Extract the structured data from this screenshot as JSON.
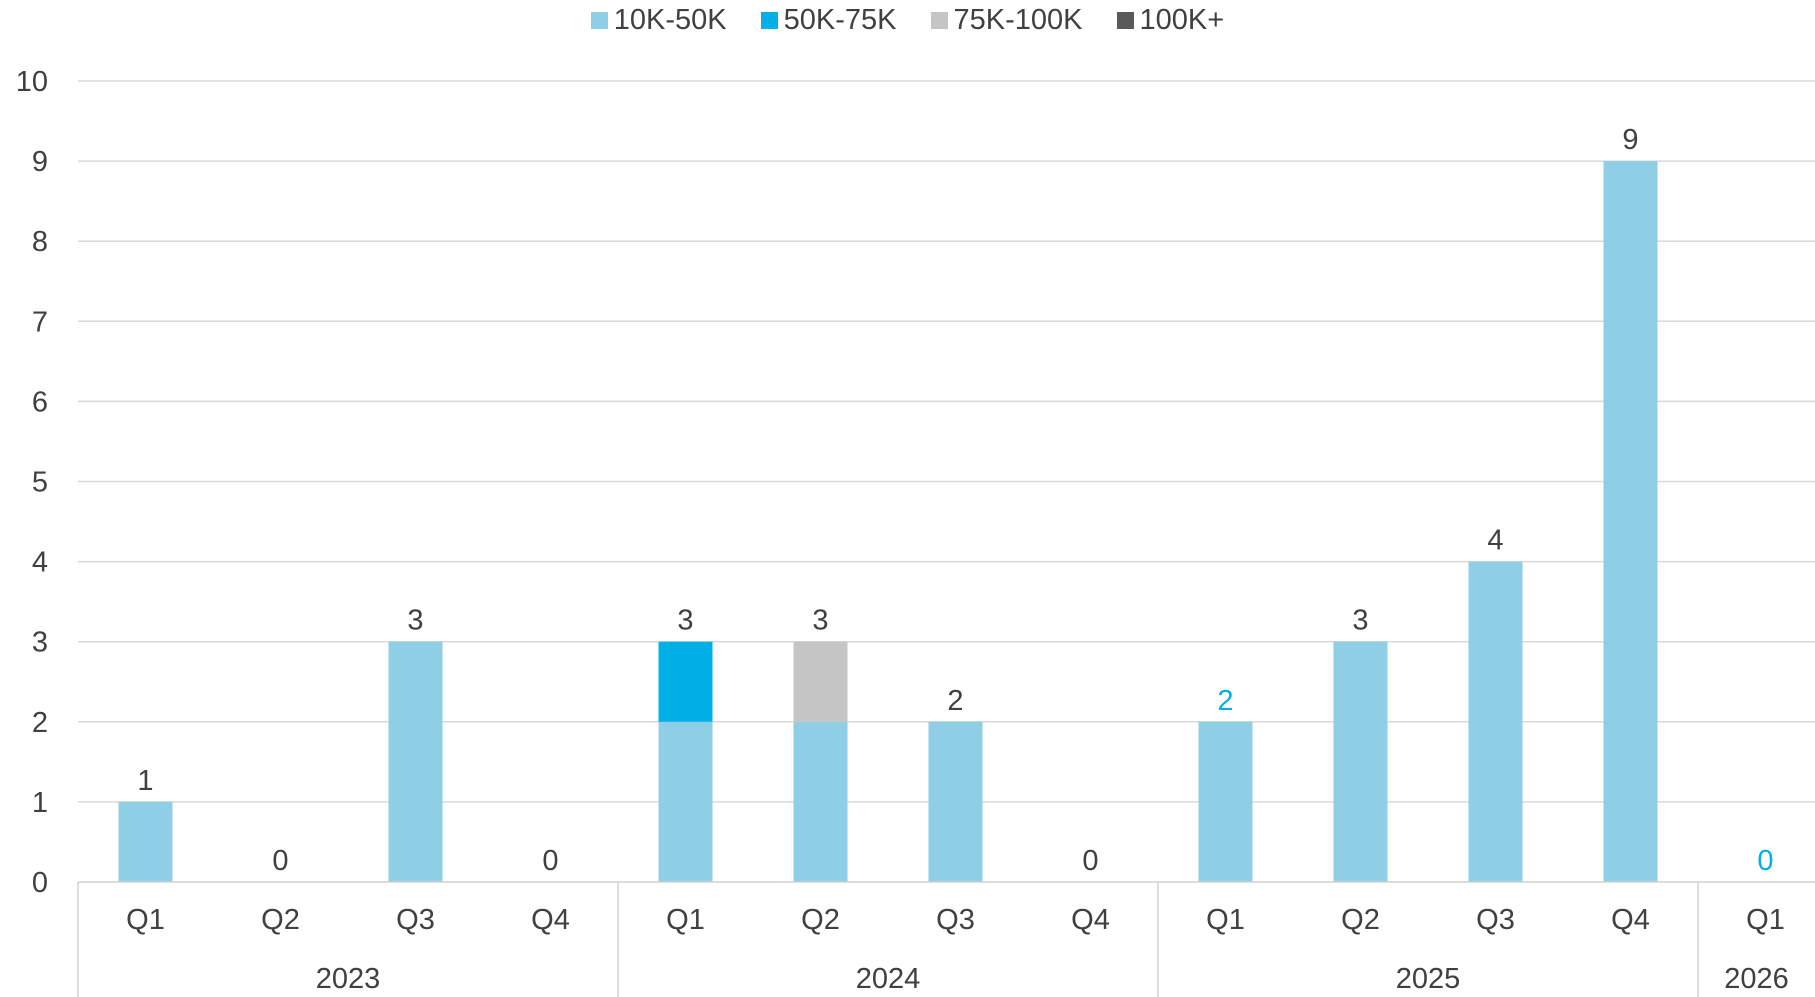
{
  "chart_data": {
    "type": "bar",
    "stacked": true,
    "title": "",
    "xlabel": "",
    "ylabel": "",
    "ylim": [
      0,
      10
    ],
    "yticks": [
      "0",
      "1",
      "2",
      "3",
      "4",
      "5",
      "6",
      "7",
      "8",
      "9",
      "10"
    ],
    "grid": true,
    "legend_position": "top-center",
    "groups": [
      {
        "label": "2023",
        "quarters": [
          "Q1",
          "Q2",
          "Q3",
          "Q4"
        ]
      },
      {
        "label": "2024",
        "quarters": [
          "Q1",
          "Q2",
          "Q3",
          "Q4"
        ]
      },
      {
        "label": "2025",
        "quarters": [
          "Q1",
          "Q2",
          "Q3",
          "Q4"
        ]
      },
      {
        "label": "2026",
        "quarters": [
          "Q1"
        ]
      }
    ],
    "series": [
      {
        "name": "10K-50K",
        "color": "#8ecfe6",
        "values": [
          1,
          0,
          3,
          0,
          2,
          2,
          2,
          0,
          2,
          3,
          4,
          9,
          0
        ]
      },
      {
        "name": "50K-75K",
        "color": "#00b0e6",
        "values": [
          0,
          0,
          0,
          0,
          1,
          0,
          0,
          0,
          0,
          0,
          0,
          0,
          0
        ]
      },
      {
        "name": "75K-100K",
        "color": "#c6c5c6",
        "values": [
          0,
          0,
          0,
          0,
          0,
          1,
          0,
          0,
          0,
          0,
          0,
          0,
          0
        ]
      },
      {
        "name": "100K+",
        "color": "#5a5a5a",
        "values": [
          0,
          0,
          0,
          0,
          0,
          0,
          0,
          0,
          0,
          0,
          0,
          0,
          0
        ]
      }
    ],
    "totals": [
      "1",
      "0",
      "3",
      "0",
      "3",
      "3",
      "2",
      "0",
      "2",
      "3",
      "4",
      "9",
      "0"
    ],
    "highlight_total_indices": [
      8,
      12
    ],
    "highlight_color": "#00b0e6",
    "label_color": "#404040"
  }
}
